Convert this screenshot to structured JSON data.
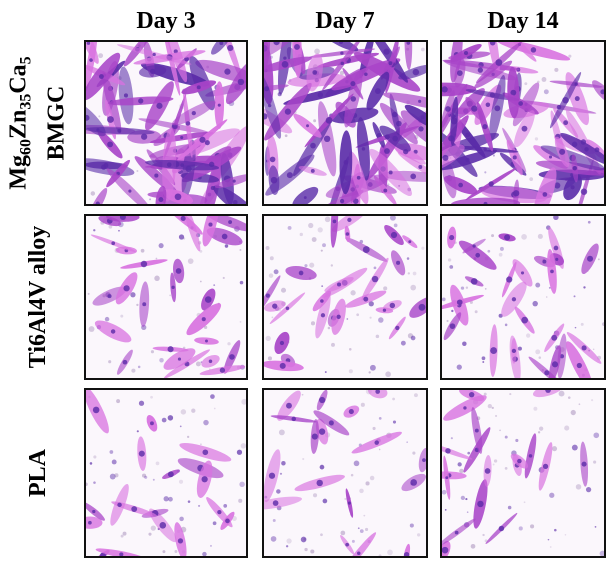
{
  "columns": [
    "Day 3",
    "Day 7",
    "Day 14"
  ],
  "rows": [
    {
      "label_parts": [
        {
          "text": "Mg",
          "sub": false
        },
        {
          "text": "60",
          "sub": true
        },
        {
          "text": "Zn",
          "sub": false
        },
        {
          "text": "35",
          "sub": true
        },
        {
          "text": "Ca",
          "sub": false
        },
        {
          "text": "5",
          "sub": true
        }
      ],
      "label_line2": "BMGC",
      "density": "high"
    },
    {
      "label": "Ti6Al4V alloy",
      "density": "medium"
    },
    {
      "label": "PLA",
      "density": "low"
    }
  ],
  "stain_colors": {
    "background": "#fbf7fc",
    "cell_light": "#d872e0",
    "cell_mid": "#a844c8",
    "cell_dark": "#5a2ba8",
    "debris": "#b8a4c8"
  }
}
